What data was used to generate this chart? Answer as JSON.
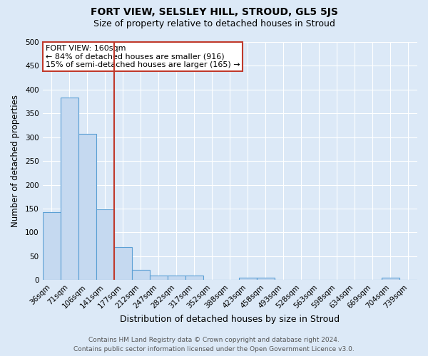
{
  "title": "FORT VIEW, SELSLEY HILL, STROUD, GL5 5JS",
  "subtitle": "Size of property relative to detached houses in Stroud",
  "xlabel": "Distribution of detached houses by size in Stroud",
  "ylabel": "Number of detached properties",
  "footer_line1": "Contains HM Land Registry data © Crown copyright and database right 2024.",
  "footer_line2": "Contains public sector information licensed under the Open Government Licence v3.0.",
  "bin_labels": [
    "36sqm",
    "71sqm",
    "106sqm",
    "141sqm",
    "177sqm",
    "212sqm",
    "247sqm",
    "282sqm",
    "317sqm",
    "352sqm",
    "388sqm",
    "423sqm",
    "458sqm",
    "493sqm",
    "528sqm",
    "563sqm",
    "598sqm",
    "634sqm",
    "669sqm",
    "704sqm",
    "739sqm"
  ],
  "bar_heights": [
    142,
    383,
    307,
    148,
    70,
    22,
    9,
    9,
    9,
    0,
    0,
    5,
    5,
    0,
    0,
    0,
    0,
    0,
    0,
    5,
    0
  ],
  "bar_color": "#c5d9f0",
  "bar_edge_color": "#5a9fd4",
  "bar_edge_width": 0.8,
  "vline_color": "#c0392b",
  "annotation_line1": "FORT VIEW: 160sqm",
  "annotation_line2": "← 84% of detached houses are smaller (916)",
  "annotation_line3": "15% of semi-detached houses are larger (165) →",
  "annotation_box_color": "#ffffff",
  "annotation_box_edge": "#c0392b",
  "ylim": [
    0,
    500
  ],
  "yticks": [
    0,
    50,
    100,
    150,
    200,
    250,
    300,
    350,
    400,
    450,
    500
  ],
  "bg_color": "#dce9f7",
  "grid_color": "#ffffff",
  "title_fontsize": 10,
  "subtitle_fontsize": 9,
  "xlabel_fontsize": 9,
  "ylabel_fontsize": 8.5,
  "tick_fontsize": 7.5,
  "annotation_fontsize": 8,
  "footer_fontsize": 6.5
}
